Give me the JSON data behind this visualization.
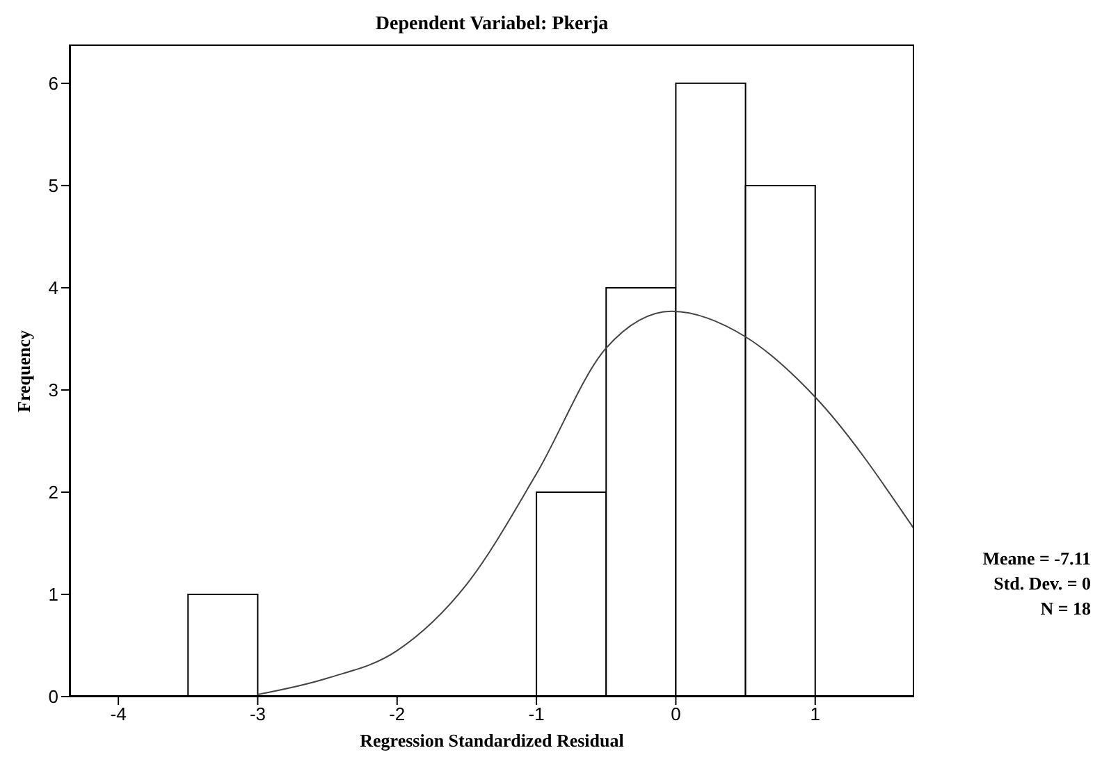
{
  "chart_data": {
    "type": "histogram",
    "title": "Dependent Variabel: Pkerja",
    "xlabel": "Regression Standardized Residual",
    "ylabel": "Frequency",
    "series": [
      {
        "color": "#000000",
        "bins": [
          -3.5,
          -3,
          -2.5,
          -2,
          -1.5,
          -1,
          -0.5,
          0,
          0.5,
          1
        ],
        "values": [
          1,
          0,
          0,
          0,
          0,
          2,
          4,
          6,
          5
        ]
      },
      {
        "type": "line",
        "color": "#444444",
        "x": [
          -3,
          -2.5,
          -2,
          -1.5,
          -1,
          -0.5,
          -0.03,
          0.5,
          1,
          1.71
        ],
        "values": [
          0.02,
          0.18,
          0.45,
          1.1,
          2.18,
          3.41,
          3.77,
          3.52,
          2.93,
          1.64
        ]
      }
    ],
    "xlim": [
      -4.35,
      1.71
    ],
    "xticks": [
      -4,
      -3,
      -2,
      -1,
      0,
      1
    ],
    "ylim": [
      0,
      6.38
    ],
    "yticks": [
      0,
      1,
      2,
      3,
      4,
      5,
      6
    ],
    "grid": false,
    "annotations": [
      "Meane = -7.11",
      "Std. Dev. = 0",
      "N = 18"
    ]
  }
}
